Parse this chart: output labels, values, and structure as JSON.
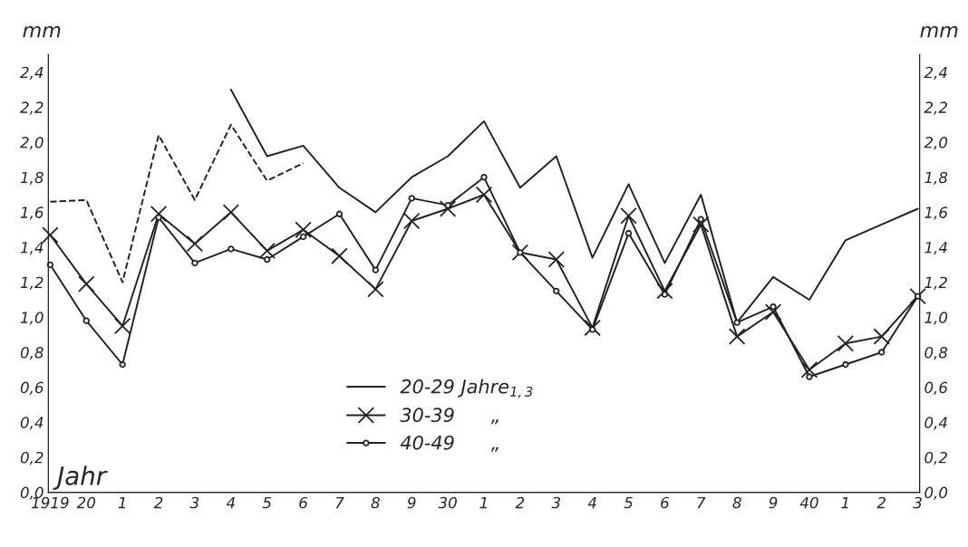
{
  "chart_data": {
    "type": "line",
    "ylabel": "mm",
    "y2label": "mm",
    "xlabel": "Jahr",
    "categories": [
      "1919",
      "20",
      "1",
      "2",
      "3",
      "4",
      "5",
      "6",
      "7",
      "8",
      "9",
      "30",
      "1",
      "2",
      "3",
      "4",
      "5",
      "6",
      "7",
      "8",
      "9",
      "40",
      "1",
      "2",
      "3"
    ],
    "series": [
      {
        "name": "20-29 Jahre$_{1,3}$",
        "color": "#222222",
        "marker": "none",
        "line_style": "solid",
        "values": [
          null,
          null,
          null,
          null,
          null,
          2.3,
          1.92,
          1.98,
          1.74,
          1.6,
          1.8,
          1.92,
          2.12,
          1.74,
          1.92,
          1.34,
          1.76,
          1.31,
          1.7,
          0.97,
          1.23,
          1.1,
          1.44,
          1.53,
          1.62
        ]
      },
      {
        "color": "#222222",
        "marker": "none",
        "line_style": "dashed",
        "values": [
          1.66,
          1.67,
          1.2,
          2.04,
          1.67,
          2.1,
          1.78,
          1.88,
          null,
          null,
          null,
          null,
          null,
          null,
          null,
          null,
          null,
          null,
          null,
          null,
          null,
          null,
          null,
          null,
          null
        ]
      },
      {
        "name": "30-39      „",
        "color": "#222222",
        "marker": "cross",
        "line_style": "solid",
        "values": [
          1.47,
          1.19,
          0.95,
          1.59,
          1.42,
          1.6,
          1.38,
          1.5,
          1.35,
          1.16,
          1.55,
          1.62,
          1.7,
          1.37,
          1.33,
          0.94,
          1.58,
          1.15,
          1.53,
          0.89,
          1.03,
          0.7,
          0.85,
          0.89,
          1.12
        ]
      },
      {
        "name": "40-49      „",
        "color": "#222222",
        "marker": "circle",
        "line_style": "solid",
        "values": [
          1.3,
          0.98,
          0.73,
          1.57,
          1.31,
          1.39,
          1.33,
          1.46,
          1.59,
          1.27,
          1.68,
          1.64,
          1.8,
          1.37,
          1.15,
          0.93,
          1.48,
          1.13,
          1.56,
          0.97,
          1.06,
          0.66,
          0.73,
          0.8,
          1.12
        ]
      }
    ],
    "ylim": [
      0,
      2.5
    ],
    "y2lim": [
      0,
      2.5
    ],
    "yticks": [
      {
        "value": 0,
        "label": "0,0"
      },
      {
        "value": 0.2,
        "label": "0,2"
      },
      {
        "value": 0.4,
        "label": "0,4"
      },
      {
        "value": 0.6,
        "label": "0,6"
      },
      {
        "value": 0.8,
        "label": "0,8"
      },
      {
        "value": 1.0,
        "label": "1,0"
      },
      {
        "value": 1.2,
        "label": "1,2"
      },
      {
        "value": 1.4,
        "label": "1,4"
      },
      {
        "value": 1.6,
        "label": "1,6"
      },
      {
        "value": 1.8,
        "label": "1,8"
      },
      {
        "value": 2.0,
        "label": "2,0"
      },
      {
        "value": 2.2,
        "label": "2,2"
      },
      {
        "value": 2.4,
        "label": "2,4"
      }
    ],
    "y2ticks": [
      {
        "value": 0,
        "label": "0,0"
      },
      {
        "value": 0.2,
        "label": "0,2"
      },
      {
        "value": 0.4,
        "label": "0,4"
      },
      {
        "value": 0.6,
        "label": "0,6"
      },
      {
        "value": 0.8,
        "label": "0,8"
      },
      {
        "value": 1.0,
        "label": "1,0"
      },
      {
        "value": 1.2,
        "label": "1,2"
      },
      {
        "value": 1.4,
        "label": "1,4"
      },
      {
        "value": 1.6,
        "label": "1,6"
      },
      {
        "value": 1.8,
        "label": "1,8"
      },
      {
        "value": 2.0,
        "label": "2,0"
      },
      {
        "value": 2.2,
        "label": "2,2"
      },
      {
        "value": 2.4,
        "label": "2,4"
      }
    ],
    "grid": false,
    "legend": "bottom"
  }
}
